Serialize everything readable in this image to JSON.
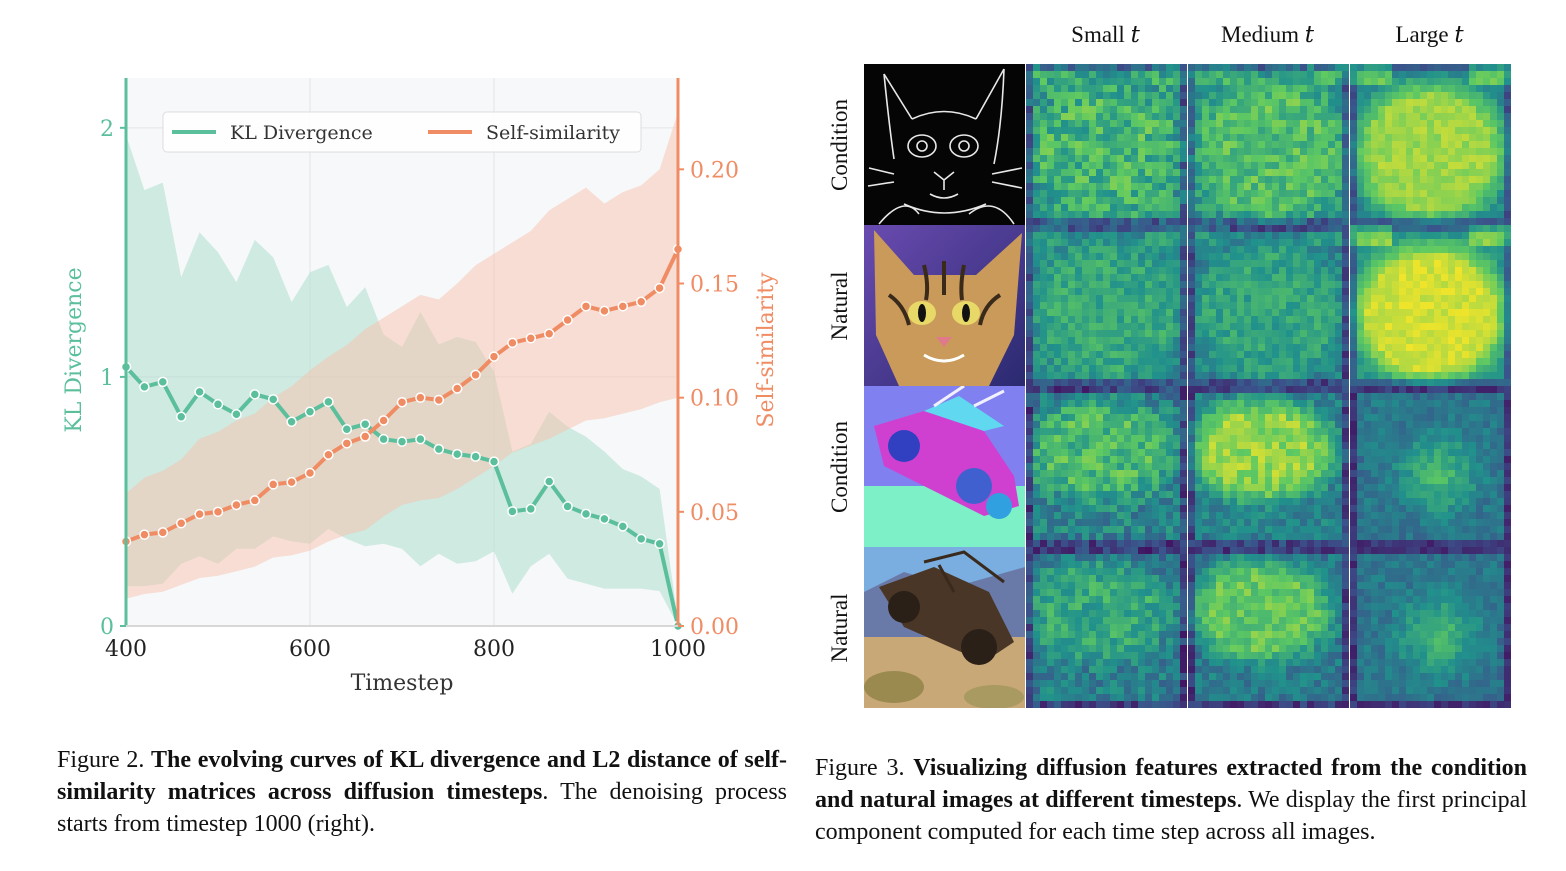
{
  "colors": {
    "kl": "#5bbf9c",
    "self_similarity": "#f08c64",
    "kl_fill": "#a8dcc8",
    "ss_fill": "#f7c2ab",
    "plot_bg": "#f6f8fa"
  },
  "chart_data": {
    "type": "line",
    "xlabel": "Timestep",
    "ylabel_left": "KL Divergence",
    "ylabel_right": "Self-similarity",
    "xlim": [
      400,
      1000
    ],
    "ylim_left": [
      0,
      2.2
    ],
    "ylim_right": [
      0,
      0.24
    ],
    "x_ticks": [
      "400",
      "600",
      "800",
      "1000"
    ],
    "y_ticks_left": [
      "0",
      "1",
      "2"
    ],
    "y_ticks_right": [
      "0.00",
      "0.05",
      "0.10",
      "0.15",
      "0.20"
    ],
    "legend": [
      "KL Divergence",
      "Self-similarity"
    ],
    "x": [
      400,
      420,
      440,
      460,
      480,
      500,
      520,
      540,
      560,
      580,
      600,
      620,
      640,
      660,
      680,
      700,
      720,
      740,
      760,
      780,
      800,
      820,
      840,
      860,
      880,
      900,
      920,
      940,
      960,
      980,
      1000
    ],
    "series": [
      {
        "name": "KL Divergence",
        "axis": "left",
        "values": [
          1.04,
          0.96,
          0.98,
          0.84,
          0.94,
          0.89,
          0.85,
          0.93,
          0.91,
          0.82,
          0.86,
          0.9,
          0.79,
          0.81,
          0.75,
          0.74,
          0.75,
          0.71,
          0.69,
          0.68,
          0.66,
          0.46,
          0.47,
          0.58,
          0.48,
          0.45,
          0.43,
          0.4,
          0.35,
          0.33,
          0.0
        ],
        "upper": [
          1.97,
          1.75,
          1.78,
          1.4,
          1.58,
          1.5,
          1.38,
          1.55,
          1.48,
          1.3,
          1.42,
          1.45,
          1.28,
          1.36,
          1.17,
          1.12,
          1.26,
          1.13,
          1.16,
          1.14,
          1.02,
          0.7,
          0.73,
          0.86,
          0.8,
          0.76,
          0.7,
          0.63,
          0.6,
          0.55,
          0.02
        ],
        "lower": [
          0.16,
          0.16,
          0.17,
          0.25,
          0.28,
          0.25,
          0.31,
          0.31,
          0.36,
          0.34,
          0.33,
          0.39,
          0.35,
          0.32,
          0.33,
          0.31,
          0.24,
          0.29,
          0.25,
          0.26,
          0.3,
          0.13,
          0.24,
          0.29,
          0.19,
          0.17,
          0.15,
          0.15,
          0.15,
          0.14,
          0.0
        ]
      },
      {
        "name": "Self-similarity",
        "axis": "right",
        "values": [
          0.037,
          0.04,
          0.041,
          0.045,
          0.049,
          0.05,
          0.053,
          0.055,
          0.062,
          0.063,
          0.067,
          0.075,
          0.08,
          0.083,
          0.09,
          0.098,
          0.1,
          0.099,
          0.104,
          0.11,
          0.118,
          0.124,
          0.126,
          0.128,
          0.134,
          0.14,
          0.138,
          0.14,
          0.142,
          0.148,
          0.165
        ],
        "upper": [
          0.058,
          0.065,
          0.068,
          0.073,
          0.082,
          0.085,
          0.09,
          0.093,
          0.1,
          0.105,
          0.112,
          0.118,
          0.123,
          0.13,
          0.135,
          0.14,
          0.145,
          0.143,
          0.15,
          0.158,
          0.163,
          0.168,
          0.173,
          0.182,
          0.187,
          0.192,
          0.185,
          0.19,
          0.193,
          0.2,
          0.225
        ],
        "lower": [
          0.012,
          0.014,
          0.015,
          0.018,
          0.021,
          0.022,
          0.024,
          0.026,
          0.03,
          0.031,
          0.033,
          0.037,
          0.04,
          0.042,
          0.048,
          0.053,
          0.055,
          0.056,
          0.06,
          0.065,
          0.07,
          0.076,
          0.079,
          0.082,
          0.086,
          0.09,
          0.091,
          0.093,
          0.095,
          0.098,
          0.1
        ]
      }
    ]
  },
  "figure3": {
    "columns": [
      "Small",
      "Medium",
      "Large"
    ],
    "t_symbol": "t",
    "rows": [
      "Condition",
      "Natural",
      "Condition",
      "Natural"
    ]
  },
  "captions": {
    "fig2": {
      "label": "Figure 2.",
      "bold": "The evolving curves of KL divergence and L2 distance of self-similarity matrices across diffusion timesteps",
      "rest": ". The denoising process starts from timestep 1000 (right)."
    },
    "fig3": {
      "label": "Figure 3.",
      "bold": "Visualizing diffusion features extracted from the condition and natural images at different timesteps",
      "rest": ". We display the first principal component computed for each time step across all images."
    }
  }
}
